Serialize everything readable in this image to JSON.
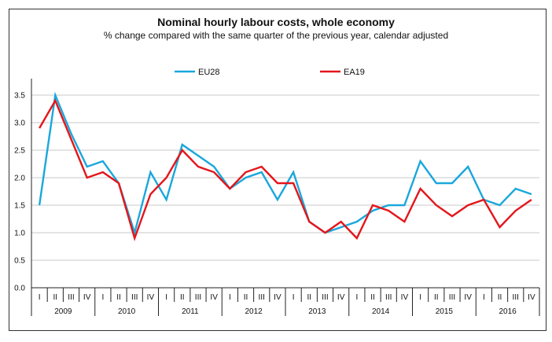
{
  "chart_data": {
    "type": "line",
    "title": "Nominal hourly labour costs, whole economy",
    "subtitle": "% change compared with the same quarter of the previous year, calendar adjusted",
    "xlabel": "",
    "ylabel": "",
    "ylim": [
      0,
      3.5
    ],
    "yticks": [
      "0.0",
      "0.5",
      "1.0",
      "1.5",
      "2.0",
      "2.5",
      "3.0",
      "3.5"
    ],
    "ytick_values": [
      0,
      0.5,
      1.0,
      1.5,
      2.0,
      2.5,
      3.0,
      3.5
    ],
    "grid": true,
    "legend_position": "top-center",
    "quarters": [
      "I",
      "II",
      "III",
      "IV"
    ],
    "years": [
      "2009",
      "2010",
      "2011",
      "2012",
      "2013",
      "2014",
      "2015",
      "2016"
    ],
    "series": [
      {
        "name": "EU28",
        "color": "#1aa7dc",
        "values": [
          1.5,
          3.5,
          2.8,
          2.2,
          2.3,
          1.9,
          1.0,
          2.1,
          1.6,
          2.6,
          2.4,
          2.2,
          1.8,
          2.0,
          2.1,
          1.6,
          2.1,
          1.2,
          1.0,
          1.1,
          1.2,
          1.4,
          1.5,
          1.5,
          2.3,
          1.9,
          1.9,
          2.2,
          1.6,
          1.5,
          1.8,
          1.7
        ]
      },
      {
        "name": "EA19",
        "color": "#e3161b",
        "values": [
          2.9,
          3.4,
          2.7,
          2.0,
          2.1,
          1.9,
          0.9,
          1.7,
          2.0,
          2.5,
          2.2,
          2.1,
          1.8,
          2.1,
          2.2,
          1.9,
          1.9,
          1.2,
          1.0,
          1.2,
          0.9,
          1.5,
          1.4,
          1.2,
          1.8,
          1.5,
          1.3,
          1.5,
          1.6,
          1.1,
          1.4,
          1.6
        ]
      }
    ]
  }
}
